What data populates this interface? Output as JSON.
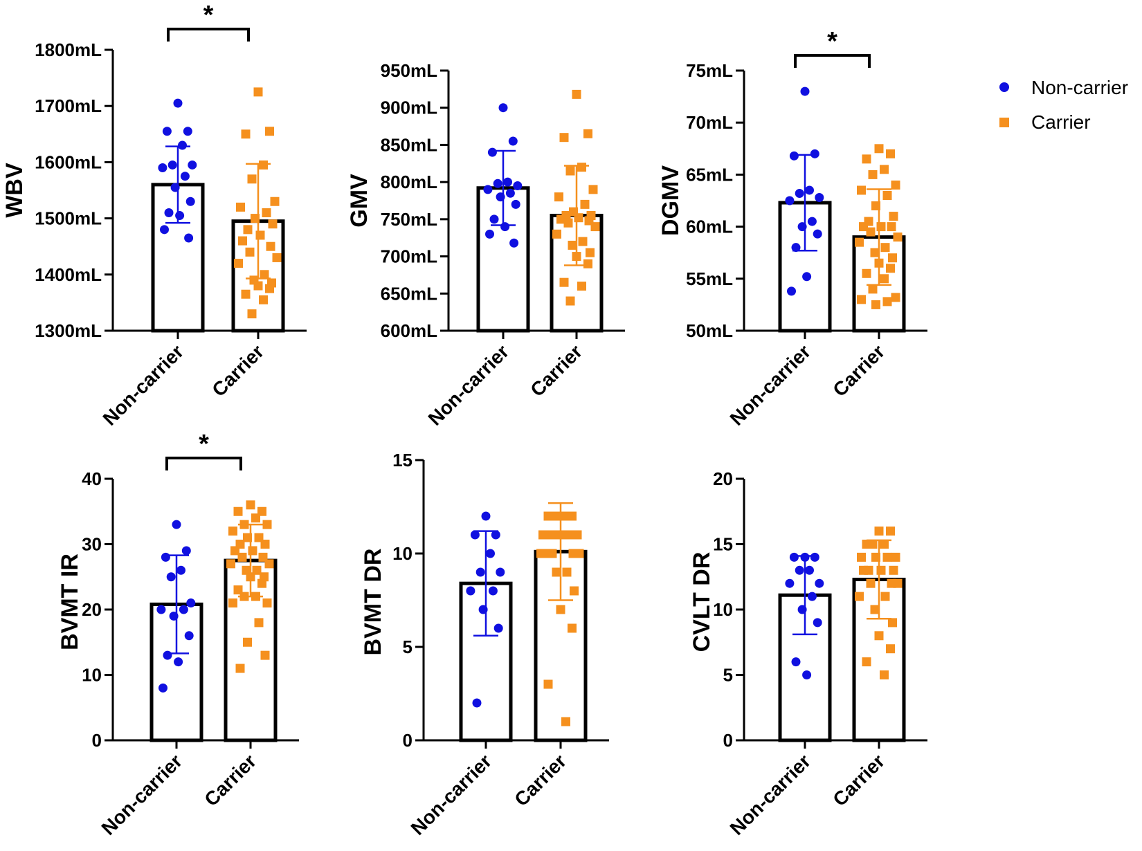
{
  "colors": {
    "noncarrier": "#1010e0",
    "carrier": "#f5901e",
    "axis": "#000000"
  },
  "legend": [
    {
      "label": "Non-carrier",
      "shape": "circle",
      "color": "#1010e0"
    },
    {
      "label": "Carrier",
      "shape": "square",
      "color": "#f5901e"
    }
  ],
  "chart_data": [
    {
      "type": "bar",
      "id": "wbv",
      "ylabel": "WBV",
      "unit": "mL",
      "categories": [
        "Non-carrier",
        "Carrier"
      ],
      "ylim": [
        1300,
        1800
      ],
      "yticks": [
        1300,
        1400,
        1500,
        1600,
        1700,
        1800
      ],
      "tick_labels": [
        "1300mL",
        "1400mL",
        "1500mL",
        "1600mL",
        "1700mL",
        "1800mL"
      ],
      "means": [
        1560,
        1495
      ],
      "sd": [
        68,
        102
      ],
      "points": [
        [
          1705,
          1655,
          1655,
          1630,
          1595,
          1595,
          1590,
          1575,
          1555,
          1530,
          1510,
          1505,
          1480,
          1465
        ],
        [
          1725,
          1655,
          1650,
          1595,
          1570,
          1530,
          1520,
          1510,
          1500,
          1490,
          1480,
          1470,
          1460,
          1450,
          1440,
          1430,
          1420,
          1400,
          1390,
          1385,
          1380,
          1375,
          1365,
          1355,
          1330
        ]
      ],
      "significance": "*"
    },
    {
      "type": "bar",
      "id": "gmv",
      "ylabel": "GMV",
      "unit": "mL",
      "categories": [
        "Non-carrier",
        "Carrier"
      ],
      "ylim": [
        600,
        950
      ],
      "yticks": [
        600,
        650,
        700,
        750,
        800,
        850,
        900,
        950
      ],
      "tick_labels": [
        "600mL",
        "650mL",
        "700mL",
        "750mL",
        "800mL",
        "850mL",
        "900mL",
        "950mL"
      ],
      "means": [
        792,
        755
      ],
      "sd": [
        50,
        67
      ],
      "points": [
        [
          900,
          855,
          840,
          800,
          798,
          795,
          790,
          785,
          780,
          770,
          750,
          740,
          730,
          718
        ],
        [
          918,
          865,
          860,
          820,
          815,
          790,
          780,
          770,
          760,
          755,
          755,
          752,
          750,
          748,
          745,
          740,
          730,
          720,
          715,
          705,
          700,
          690,
          665,
          660,
          640
        ]
      ],
      "significance": ""
    },
    {
      "type": "bar",
      "id": "dgmv",
      "ylabel": "DGMV",
      "unit": "mL",
      "categories": [
        "Non-carrier",
        "Carrier"
      ],
      "ylim": [
        50,
        75
      ],
      "yticks": [
        50,
        55,
        60,
        65,
        70,
        75
      ],
      "tick_labels": [
        "50mL",
        "55mL",
        "60mL",
        "65mL",
        "70mL",
        "75mL"
      ],
      "means": [
        62.3,
        59.0
      ],
      "sd": [
        4.6,
        4.6
      ],
      "points": [
        [
          73,
          67,
          66.8,
          63.5,
          63.2,
          62.8,
          62.5,
          60.5,
          60,
          59.3,
          58,
          55.2,
          53.8
        ],
        [
          67.5,
          67,
          66.5,
          65.5,
          65,
          64,
          63.5,
          63,
          62,
          61,
          60.5,
          60,
          60,
          60,
          59.5,
          59,
          58.5,
          58,
          57.5,
          57,
          56.5,
          56,
          55.5,
          55,
          54,
          53.2,
          53,
          52.8,
          52.5
        ]
      ],
      "significance": "*"
    },
    {
      "type": "bar",
      "id": "bvmt-ir",
      "ylabel": "BVMT IR",
      "unit": "",
      "categories": [
        "Non-carrier",
        "Carrier"
      ],
      "ylim": [
        0,
        40
      ],
      "yticks": [
        0,
        10,
        20,
        30,
        40
      ],
      "tick_labels": [
        "0",
        "10",
        "20",
        "30",
        "40"
      ],
      "means": [
        20.8,
        27.5
      ],
      "sd": [
        7.5,
        5.5
      ],
      "points": [
        [
          33,
          29,
          28,
          26,
          25,
          21,
          20,
          20,
          19,
          16,
          13,
          12,
          8
        ],
        [
          36,
          35,
          35,
          34,
          33,
          33,
          32,
          31,
          31,
          30,
          30,
          29,
          29,
          28,
          28,
          27,
          27,
          26,
          26,
          25,
          25,
          24,
          23,
          22,
          22,
          21,
          21,
          18,
          15,
          13,
          11
        ]
      ],
      "significance": "*"
    },
    {
      "type": "bar",
      "id": "bvmt-dr",
      "ylabel": "BVMT  DR",
      "unit": "",
      "categories": [
        "Non-carrier",
        "Carrier"
      ],
      "ylim": [
        0,
        15
      ],
      "yticks": [
        0,
        5,
        10,
        15
      ],
      "tick_labels": [
        "0",
        "5",
        "10",
        "15"
      ],
      "means": [
        8.4,
        10.1
      ],
      "sd": [
        2.8,
        2.6
      ],
      "points": [
        [
          12,
          11,
          11,
          10,
          9,
          9,
          8,
          8,
          7,
          6,
          2
        ],
        [
          12,
          12,
          12,
          12,
          12,
          11,
          11,
          11,
          11,
          11,
          11,
          11,
          10,
          10,
          10,
          10,
          10,
          9,
          9,
          8,
          7,
          6,
          3,
          1
        ]
      ],
      "significance": ""
    },
    {
      "type": "bar",
      "id": "cvlt-dr",
      "ylabel": "CVLT DR",
      "unit": "",
      "categories": [
        "Non-carrier",
        "Carrier"
      ],
      "ylim": [
        0,
        20
      ],
      "yticks": [
        0,
        5,
        10,
        15,
        20
      ],
      "tick_labels": [
        "0",
        "5",
        "10",
        "15",
        "20"
      ],
      "means": [
        11.1,
        12.3
      ],
      "sd": [
        3.0,
        3.0
      ],
      "points": [
        [
          14,
          14,
          14,
          13,
          13,
          12,
          12,
          11,
          10,
          9,
          6,
          5
        ],
        [
          16,
          16,
          15,
          15,
          15,
          14,
          14,
          14,
          14,
          13,
          13,
          13,
          13,
          12,
          12,
          12,
          11,
          11,
          10,
          9,
          8,
          7,
          6,
          5
        ]
      ],
      "significance": ""
    }
  ]
}
